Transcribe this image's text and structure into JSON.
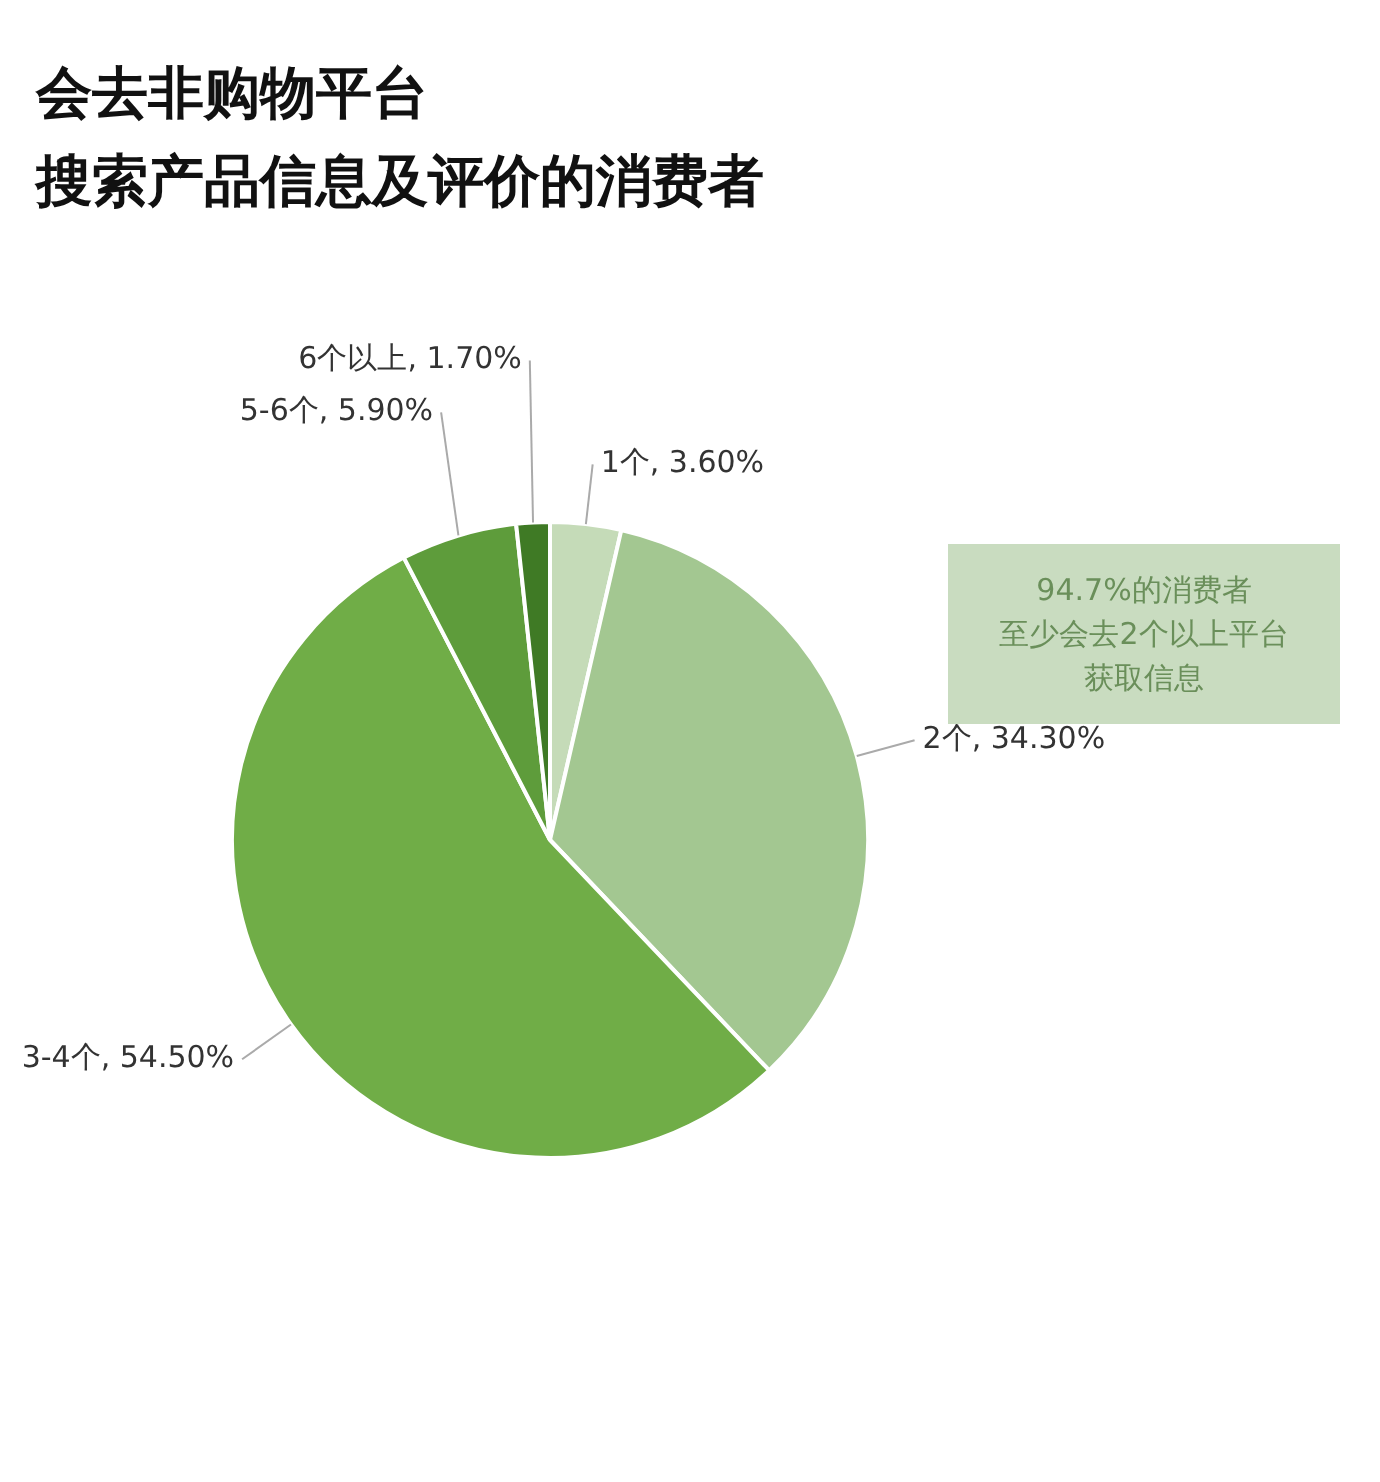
{
  "chart_data": {
    "type": "pie",
    "title": "会去非购物平台",
    "subtitle": "搜索产品信息及评价的消费者",
    "categories": [
      "1个",
      "2个",
      "3-4个",
      "5-6个",
      "6个以上"
    ],
    "values": [
      3.6,
      34.3,
      54.5,
      5.9,
      1.7
    ],
    "value_labels": [
      "3.60%",
      "34.30%",
      "54.50%",
      "5.90%",
      "1.70%"
    ],
    "colors": [
      "#c5dbb8",
      "#a3c791",
      "#70ad47",
      "#5e9c3b",
      "#3f7a25"
    ],
    "annotations": [
      "94.7%的消费者",
      "至少会去2个以上平台",
      "获取信息"
    ],
    "legend": false
  }
}
